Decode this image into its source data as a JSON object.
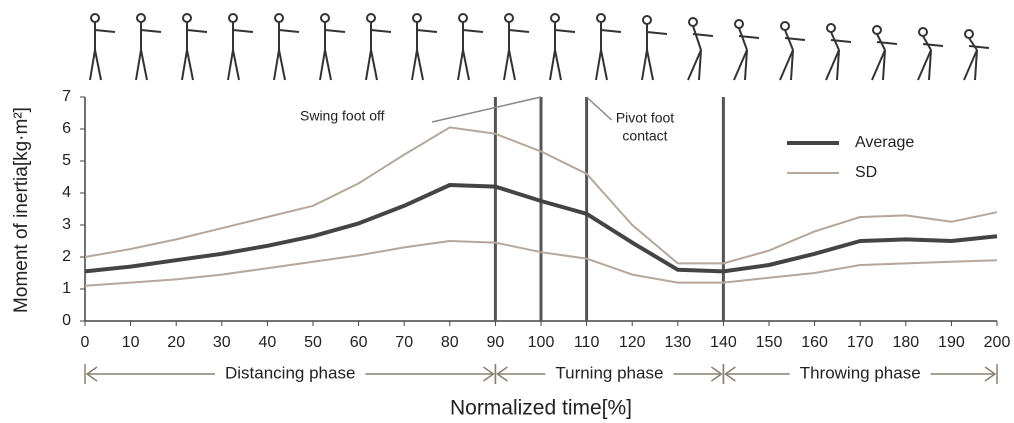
{
  "chart_data": {
    "type": "line",
    "y_label": "Moment of inertia[kg·m²]",
    "x_label": "Normalized time[%]",
    "x": [
      0,
      10,
      20,
      30,
      40,
      50,
      60,
      70,
      80,
      90,
      100,
      110,
      120,
      130,
      140,
      150,
      160,
      170,
      180,
      190,
      200
    ],
    "xlim": [
      0,
      200
    ],
    "xticks": [
      0,
      10,
      20,
      30,
      40,
      50,
      60,
      70,
      80,
      90,
      100,
      110,
      120,
      130,
      140,
      150,
      160,
      170,
      180,
      190,
      200
    ],
    "ylim": [
      0,
      7
    ],
    "yticks": [
      0,
      1,
      2,
      3,
      4,
      5,
      6,
      7
    ],
    "legend": "upper right",
    "series": [
      {
        "name": "Average",
        "color": "#444444",
        "width": 4,
        "values": [
          1.55,
          1.7,
          1.9,
          2.1,
          2.35,
          2.65,
          3.05,
          3.6,
          4.25,
          4.2,
          3.75,
          3.35,
          2.45,
          1.6,
          1.55,
          1.75,
          2.1,
          2.5,
          2.55,
          2.5,
          2.65
        ]
      },
      {
        "name": "SD",
        "color": "#b5a79a",
        "width": 2,
        "upper": [
          2.0,
          2.25,
          2.55,
          2.9,
          3.25,
          3.6,
          4.3,
          5.2,
          6.05,
          5.85,
          5.3,
          4.6,
          3.0,
          1.8,
          1.8,
          2.2,
          2.8,
          3.25,
          3.3,
          3.1,
          3.4
        ],
        "lower": [
          1.1,
          1.2,
          1.3,
          1.45,
          1.65,
          1.85,
          2.05,
          2.3,
          2.5,
          2.45,
          2.15,
          1.95,
          1.45,
          1.2,
          1.2,
          1.35,
          1.5,
          1.75,
          1.8,
          1.85,
          1.9
        ]
      }
    ],
    "event_lines": [
      90,
      100,
      110,
      140
    ],
    "annotations": [
      "Swing foot off",
      "Pivot foot",
      "contact"
    ],
    "phases": [
      {
        "label": "Distancing phase",
        "start": 0,
        "end": 90
      },
      {
        "label": "Turning phase",
        "start": 90,
        "end": 140
      },
      {
        "label": "Throwing phase",
        "start": 140,
        "end": 200
      }
    ]
  }
}
